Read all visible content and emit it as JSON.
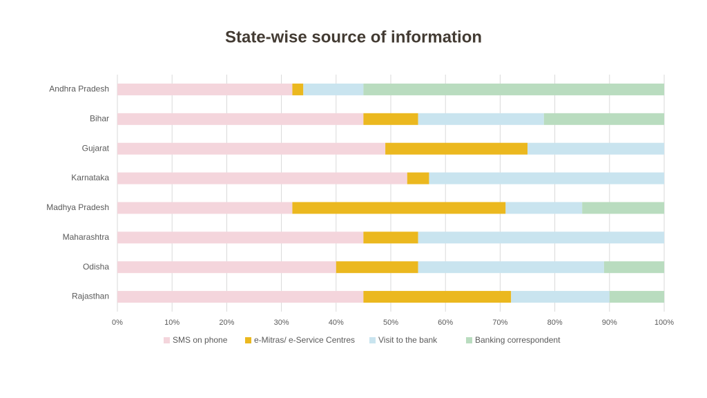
{
  "chart_data": {
    "type": "bar",
    "orientation": "horizontal",
    "stacked": true,
    "title": "State-wise source of information",
    "categories": [
      "Andhra Pradesh",
      "Bihar",
      "Gujarat",
      "Karnataka",
      "Madhya Pradesh",
      "Maharashtra",
      "Odisha",
      "Rajasthan"
    ],
    "series": [
      {
        "name": "SMS on phone",
        "color": "#f4d5dc",
        "values": [
          32,
          45,
          49,
          53,
          32,
          45,
          40,
          45
        ]
      },
      {
        "name": "e-Mitras/ e-Service Centres",
        "color": "#ebb81f",
        "values": [
          2,
          10,
          26,
          4,
          39,
          10,
          15,
          27
        ]
      },
      {
        "name": "Visit to the bank",
        "color": "#c9e4ef",
        "values": [
          11,
          23,
          25,
          43,
          14,
          45,
          34,
          18
        ]
      },
      {
        "name": "Banking correspondent",
        "color": "#b9dcbf",
        "values": [
          55,
          22,
          0,
          0,
          15,
          0,
          11,
          10
        ]
      }
    ],
    "xlim": [
      0,
      100
    ],
    "xticks": [
      {
        "value": 0,
        "label": "0%"
      },
      {
        "value": 10,
        "label": "10%"
      },
      {
        "value": 20,
        "label": "20%"
      },
      {
        "value": 30,
        "label": "30%"
      },
      {
        "value": 40,
        "label": "40%"
      },
      {
        "value": 50,
        "label": "50%"
      },
      {
        "value": 60,
        "label": "60%"
      },
      {
        "value": 70,
        "label": "70%"
      },
      {
        "value": 80,
        "label": "80%"
      },
      {
        "value": 90,
        "label": "90%"
      },
      {
        "value": 100,
        "label": "100%"
      }
    ],
    "grid": true,
    "legend": "bottom"
  }
}
